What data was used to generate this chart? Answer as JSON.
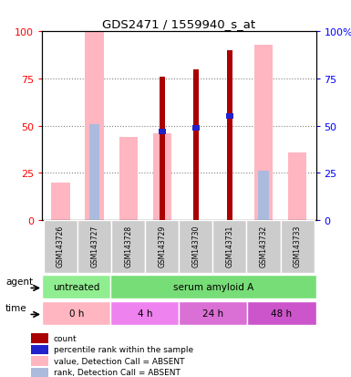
{
  "title": "GDS2471 / 1559940_s_at",
  "samples": [
    "GSM143726",
    "GSM143727",
    "GSM143728",
    "GSM143729",
    "GSM143730",
    "GSM143731",
    "GSM143732",
    "GSM143733"
  ],
  "count_values": [
    null,
    null,
    null,
    76,
    80,
    90,
    null,
    null
  ],
  "rank_values": [
    null,
    null,
    null,
    47,
    49,
    55,
    null,
    null
  ],
  "absent_value_bars": [
    20,
    100,
    44,
    46,
    null,
    null,
    93,
    36
  ],
  "absent_rank_bars": [
    null,
    51,
    null,
    null,
    null,
    null,
    26,
    null
  ],
  "colors": {
    "count": "#AA0000",
    "rank": "#2222CC",
    "absent_value": "#FFB6C1",
    "absent_rank": "#AABBDD",
    "agent_untreated": "#90EE90",
    "agent_serum": "#77DD77",
    "time_0h": "#FFB6C1",
    "time_4h": "#EE82EE",
    "time_24h": "#DA70D6",
    "time_48h": "#CC55CC"
  },
  "yticks": [
    0,
    25,
    50,
    75,
    100
  ],
  "agent_data": [
    {
      "label": "untreated",
      "start": 0,
      "end": 2
    },
    {
      "label": "serum amyloid A",
      "start": 2,
      "end": 8
    }
  ],
  "time_data": [
    {
      "label": "0 h",
      "start": 0,
      "end": 2,
      "color": "#FFB6C1"
    },
    {
      "label": "4 h",
      "start": 2,
      "end": 4,
      "color": "#EE82EE"
    },
    {
      "label": "24 h",
      "start": 4,
      "end": 6,
      "color": "#DA70D6"
    },
    {
      "label": "48 h",
      "start": 6,
      "end": 8,
      "color": "#CC55CC"
    }
  ],
  "legend_items": [
    {
      "color": "#AA0000",
      "label": "count"
    },
    {
      "color": "#2222CC",
      "label": "percentile rank within the sample"
    },
    {
      "color": "#FFB6C1",
      "label": "value, Detection Call = ABSENT"
    },
    {
      "color": "#AABBDD",
      "label": "rank, Detection Call = ABSENT"
    }
  ]
}
